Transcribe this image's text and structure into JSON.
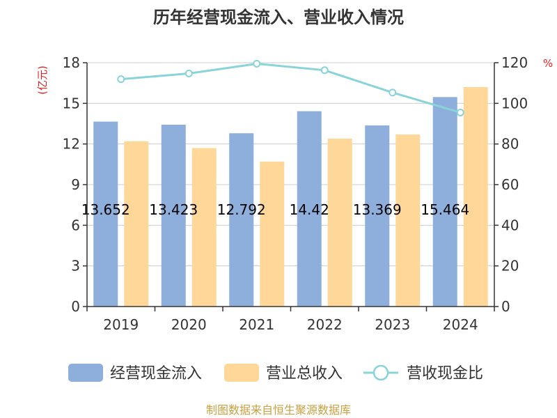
{
  "chart_data": {
    "type": "bar",
    "title": "历年经营现金流入、营业收入情况",
    "categories": [
      "2019",
      "2020",
      "2021",
      "2022",
      "2023",
      "2024"
    ],
    "series": [
      {
        "name": "经营现金流入",
        "type": "bar",
        "axis": "left",
        "color": "#8eaedb",
        "values": [
          13.652,
          13.423,
          12.792,
          14.42,
          13.369,
          15.464
        ],
        "labels": [
          "13.652",
          "13.423",
          "12.792",
          "14.42",
          "13.369",
          "15.464"
        ]
      },
      {
        "name": "营业总收入",
        "type": "bar",
        "axis": "left",
        "color": "#ffd899",
        "values": [
          12.2,
          11.7,
          10.7,
          12.4,
          12.7,
          16.2
        ]
      },
      {
        "name": "营收现金比",
        "type": "line",
        "axis": "right",
        "color": "#88d4d8",
        "values": [
          111.9,
          114.7,
          119.5,
          116.3,
          105.3,
          95.5
        ]
      }
    ],
    "y_left": {
      "unit": "(亿元)",
      "ylim": [
        0,
        18
      ],
      "ticks": [
        0,
        3,
        6,
        9,
        12,
        15,
        18
      ]
    },
    "y_right": {
      "unit": "%",
      "ylim": [
        0,
        120
      ],
      "ticks": [
        0,
        20,
        40,
        60,
        80,
        100,
        120
      ]
    },
    "grid": true,
    "legend": "bottom"
  },
  "source": "制图数据来自恒生聚源数据库"
}
